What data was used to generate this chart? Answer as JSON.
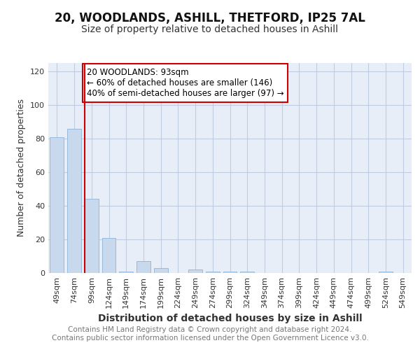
{
  "title": "20, WOODLANDS, ASHILL, THETFORD, IP25 7AL",
  "subtitle": "Size of property relative to detached houses in Ashill",
  "xlabel": "Distribution of detached houses by size in Ashill",
  "ylabel": "Number of detached properties",
  "categories": [
    "49sqm",
    "74sqm",
    "99sqm",
    "124sqm",
    "149sqm",
    "174sqm",
    "199sqm",
    "224sqm",
    "249sqm",
    "274sqm",
    "299sqm",
    "324sqm",
    "349sqm",
    "374sqm",
    "399sqm",
    "424sqm",
    "449sqm",
    "474sqm",
    "499sqm",
    "524sqm",
    "549sqm"
  ],
  "values": [
    81,
    86,
    44,
    21,
    1,
    7,
    3,
    0,
    2,
    1,
    1,
    1,
    0,
    0,
    0,
    0,
    0,
    0,
    0,
    1,
    0
  ],
  "bar_color": "#c8d9ed",
  "bar_edge_color": "#8ab4d8",
  "subject_line_color": "#cc0000",
  "annotation_text": "20 WOODLANDS: 93sqm\n← 60% of detached houses are smaller (146)\n40% of semi-detached houses are larger (97) →",
  "annotation_box_color": "#ffffff",
  "annotation_box_edge_color": "#cc0000",
  "ylim": [
    0,
    125
  ],
  "yticks": [
    0,
    20,
    40,
    60,
    80,
    100,
    120
  ],
  "grid_color": "#c0cce0",
  "background_color": "#e8eef8",
  "footer_text": "Contains HM Land Registry data © Crown copyright and database right 2024.\nContains public sector information licensed under the Open Government Licence v3.0.",
  "title_fontsize": 12,
  "subtitle_fontsize": 10,
  "xlabel_fontsize": 10,
  "ylabel_fontsize": 9,
  "tick_fontsize": 8,
  "annotation_fontsize": 8.5,
  "footer_fontsize": 7.5
}
